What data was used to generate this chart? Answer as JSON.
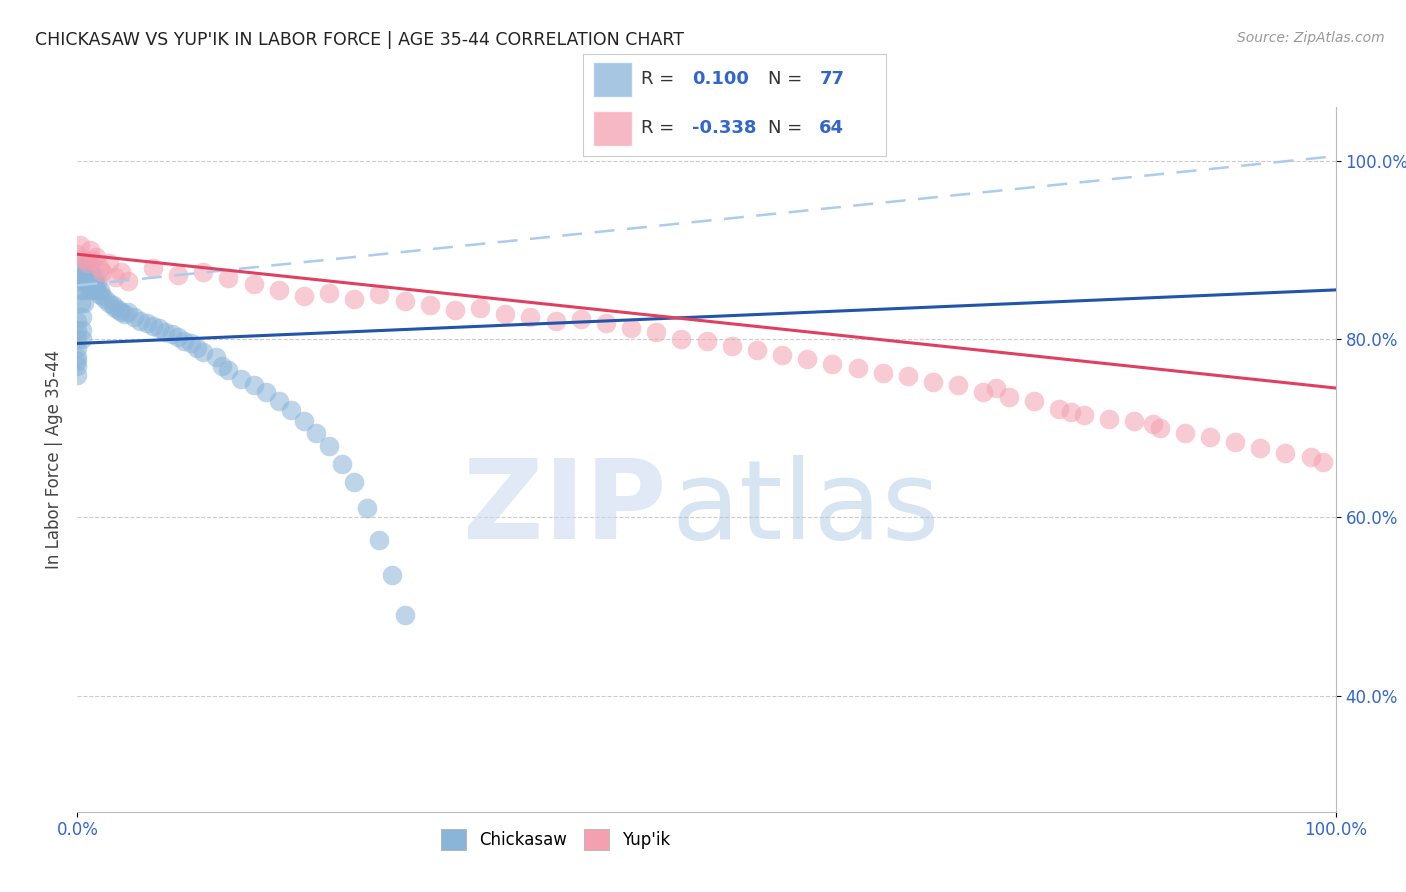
{
  "title": "CHICKASAW VS YUP'IK IN LABOR FORCE | AGE 35-44 CORRELATION CHART",
  "source": "Source: ZipAtlas.com",
  "ylabel": "In Labor Force | Age 35-44",
  "xlim": [
    0.0,
    1.0
  ],
  "ylim": [
    0.27,
    1.06
  ],
  "ytick_values": [
    0.4,
    0.6,
    0.8,
    1.0
  ],
  "ytick_labels": [
    "40.0%",
    "60.0%",
    "80.0%",
    "100.0%"
  ],
  "xtick_values": [
    0.0,
    1.0
  ],
  "xtick_labels": [
    "0.0%",
    "100.0%"
  ],
  "chickasaw_color": "#8ab4d8",
  "yupik_color": "#f4a0b0",
  "chickasaw_line_color": "#2255aa",
  "yupik_line_color": "#e04060",
  "dash_line_color": "#aaccee",
  "legend_label_chickasaw": "Chickasaw",
  "legend_label_yupik": "Yup'ik",
  "background_color": "#ffffff",
  "grid_color": "#cccccc",
  "title_color": "#222222",
  "tick_color": "#3366cc",
  "axis_label_color": "#444444",
  "chickasaw_R": 0.1,
  "chickasaw_N": 77,
  "yupik_R": -0.338,
  "yupik_N": 64,
  "blue_line_x0": 0.0,
  "blue_line_y0": 0.795,
  "blue_line_x1": 1.0,
  "blue_line_y1": 0.855,
  "pink_line_x0": 0.0,
  "pink_line_y0": 0.895,
  "pink_line_x1": 1.0,
  "pink_line_y1": 0.745,
  "dash_line_x0": 0.0,
  "dash_line_y0": 0.86,
  "dash_line_x1": 1.0,
  "dash_line_y1": 1.005
}
